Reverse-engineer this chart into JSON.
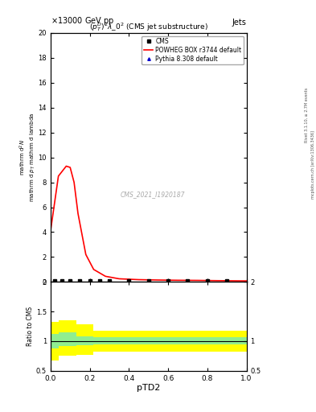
{
  "title_top": "13000 GeV pp",
  "title_right": "Jets",
  "subplot_title": "$(p_T^D)^2\\lambda\\_0^2$ (CMS jet substructure)",
  "watermark": "CMS_2021_I1920187",
  "ylabel_ratio": "Ratio to CMS",
  "xlabel": "pTD2",
  "xlim": [
    0,
    1
  ],
  "ylim_main": [
    0,
    20
  ],
  "ylim_ratio": [
    0.5,
    2.0
  ],
  "right_label_top": "Rivet 3.1.10, ≥ 2.7M events",
  "right_label_bot": "mcplots.cern.ch [arXiv:1306.3436]",
  "red_line_x": [
    0.0,
    0.04,
    0.08,
    0.1,
    0.12,
    0.14,
    0.18,
    0.22,
    0.28,
    0.35,
    0.45,
    0.55,
    0.65,
    0.75,
    0.85,
    1.0
  ],
  "red_line_y": [
    4.1,
    8.5,
    9.3,
    9.2,
    8.0,
    5.5,
    2.2,
    1.0,
    0.45,
    0.25,
    0.18,
    0.15,
    0.13,
    0.12,
    0.1,
    0.08
  ],
  "cms_data_x": [
    0.02,
    0.06,
    0.1,
    0.15,
    0.2,
    0.25,
    0.3,
    0.4,
    0.5,
    0.6,
    0.7,
    0.8,
    0.9
  ],
  "cms_data_y": [
    0.08,
    0.08,
    0.08,
    0.08,
    0.08,
    0.08,
    0.08,
    0.08,
    0.08,
    0.08,
    0.08,
    0.08,
    0.08
  ],
  "pythia_x": [
    0.02,
    0.06,
    0.1,
    0.15,
    0.2,
    0.25,
    0.3,
    0.4,
    0.5,
    0.6,
    0.7,
    0.8,
    0.9
  ],
  "pythia_y": [
    0.08,
    0.08,
    0.08,
    0.08,
    0.08,
    0.08,
    0.08,
    0.08,
    0.08,
    0.08,
    0.08,
    0.08,
    0.08
  ],
  "ratio_yellow_edges": [
    0.0,
    0.04,
    0.13,
    0.22,
    1.0
  ],
  "ratio_yellow_lo": [
    0.68,
    0.75,
    0.77,
    0.82,
    0.82
  ],
  "ratio_yellow_hi": [
    1.32,
    1.35,
    1.28,
    1.18,
    1.18
  ],
  "ratio_green_edges": [
    0.0,
    0.04,
    0.13,
    0.22,
    1.0
  ],
  "ratio_green_lo": [
    0.88,
    0.92,
    0.93,
    0.95,
    0.95
  ],
  "ratio_green_hi": [
    1.12,
    1.15,
    1.08,
    1.07,
    1.07
  ],
  "color_red": "#ff0000",
  "color_blue": "#0000cc",
  "color_cms": "#000000",
  "color_yellow": "#ffff00",
  "color_green": "#90ee90",
  "background": "#ffffff"
}
